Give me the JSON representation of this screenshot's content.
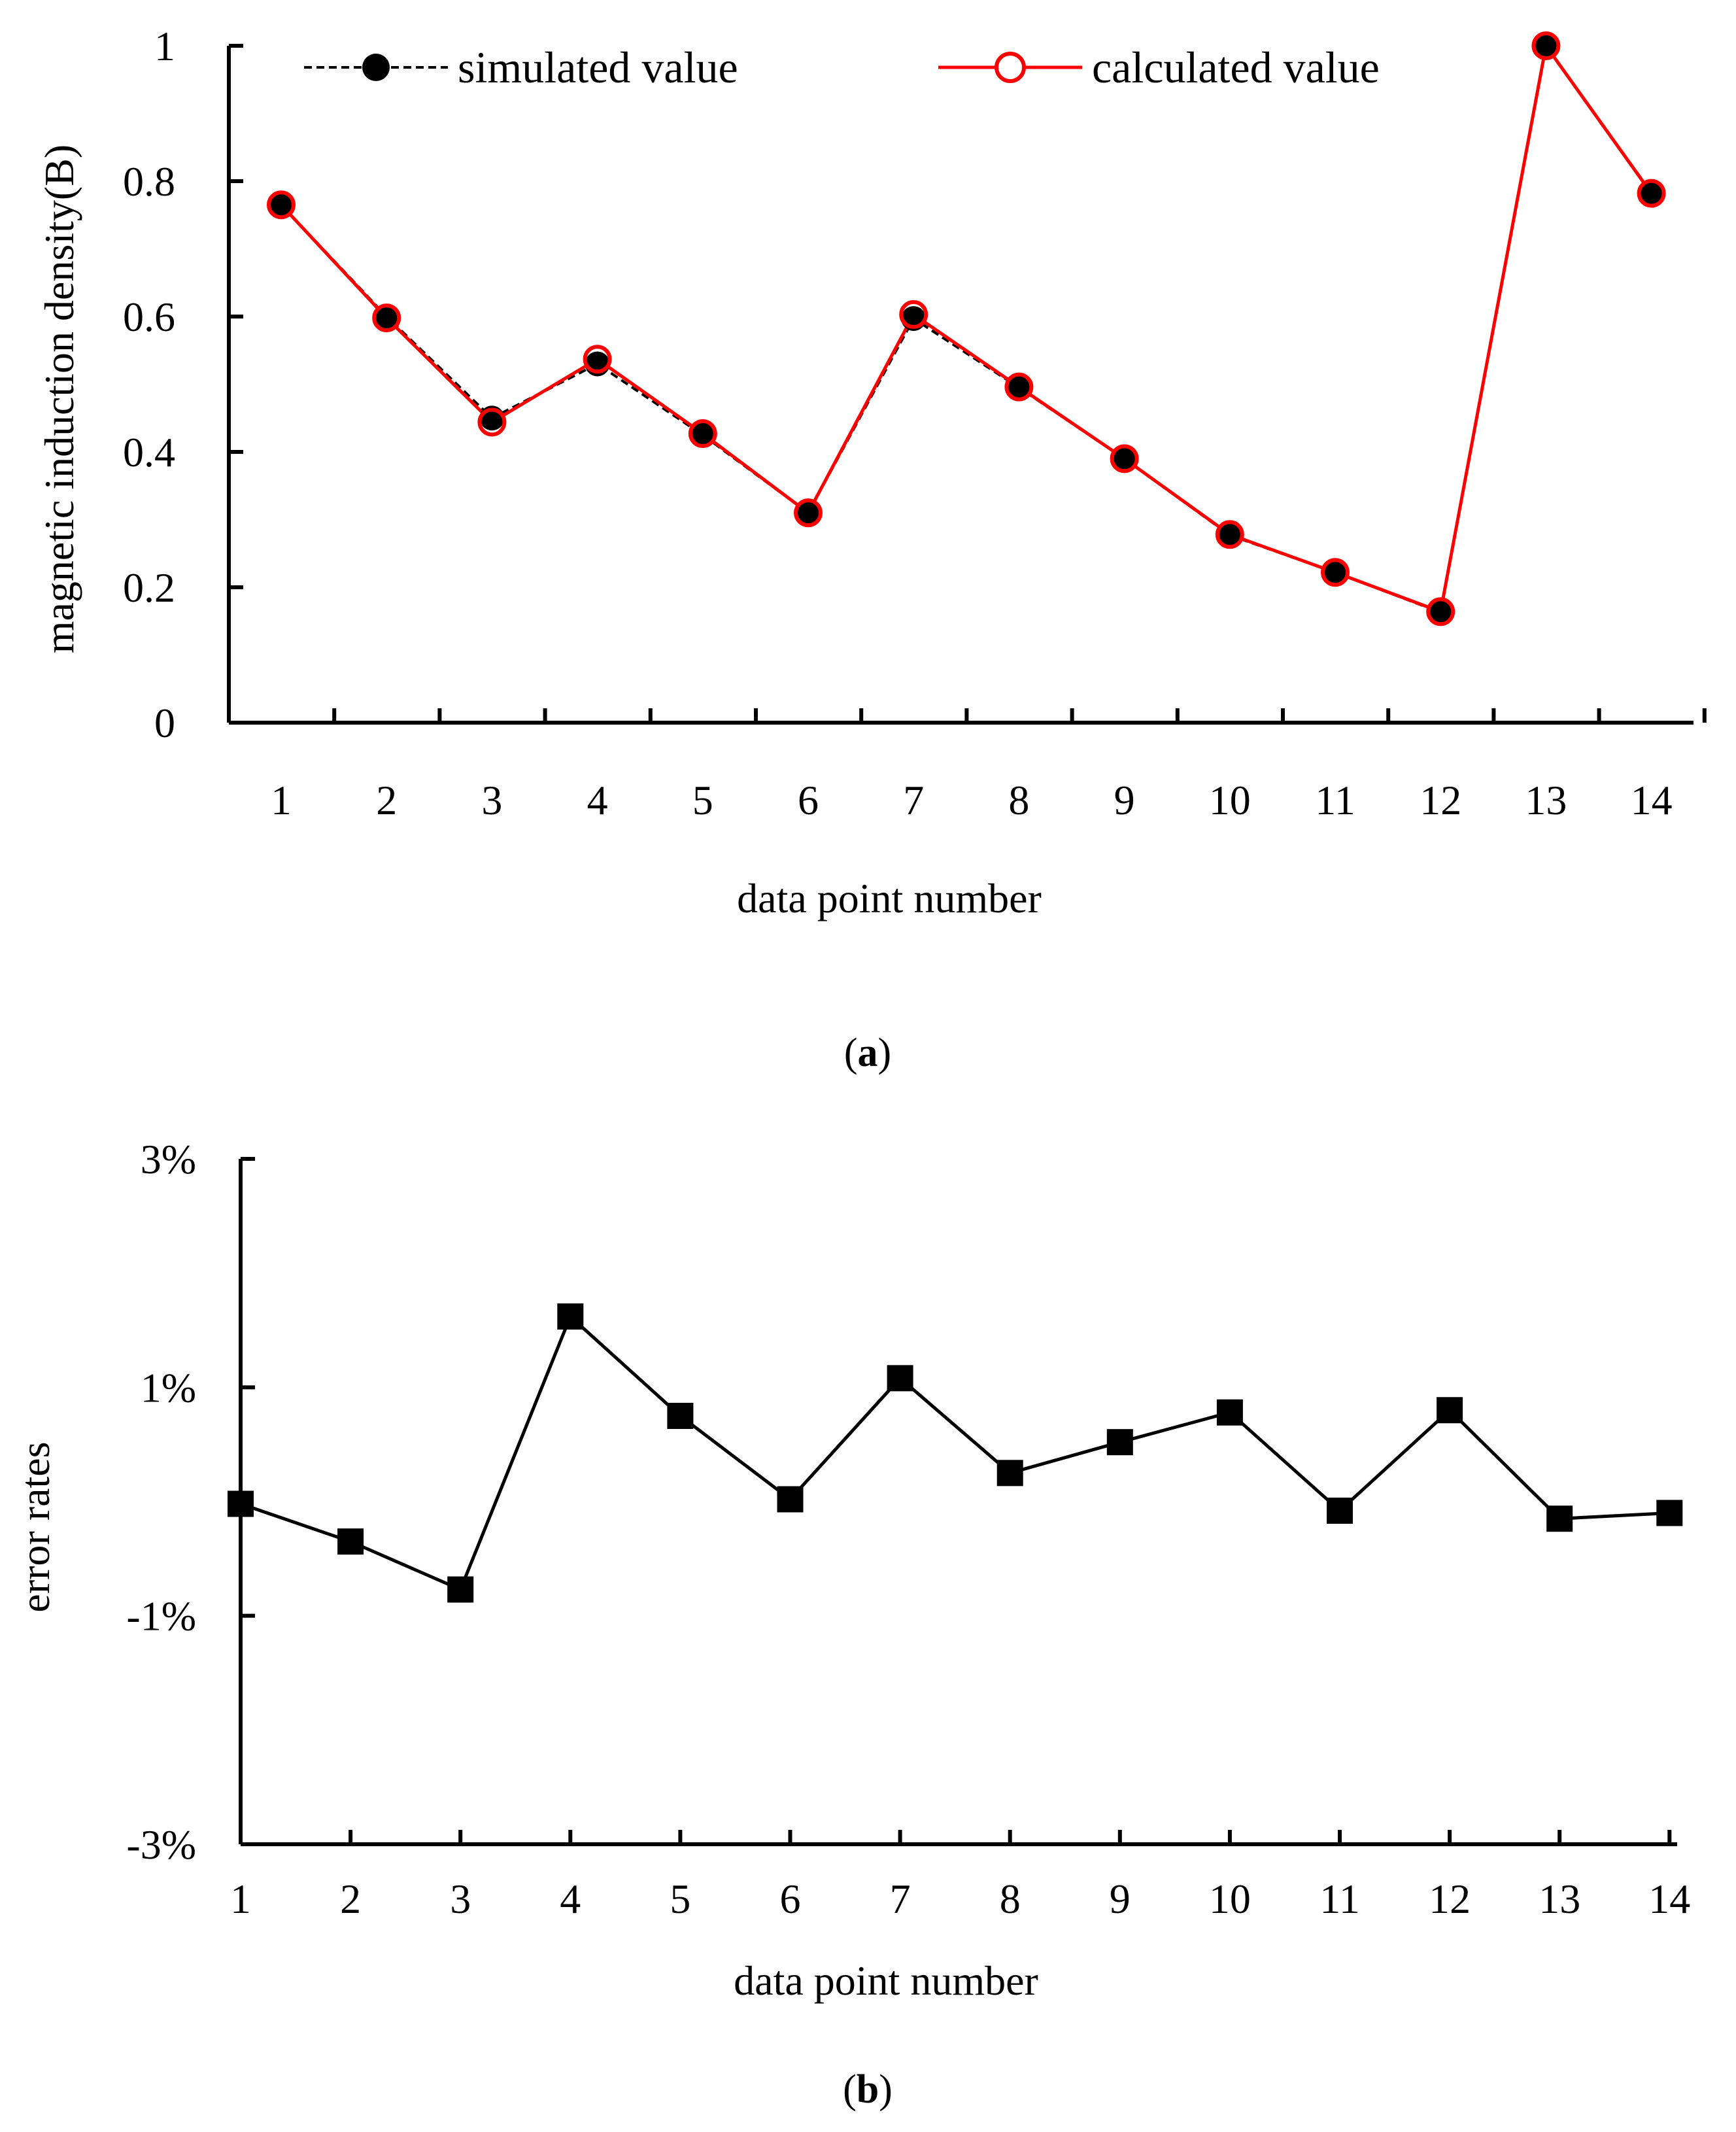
{
  "chart_data": [
    {
      "type": "line",
      "caption_letter": "a",
      "categories": [
        "1",
        "2",
        "3",
        "4",
        "5",
        "6",
        "7",
        "8",
        "9",
        "10",
        "11",
        "12",
        "13",
        "14"
      ],
      "series": [
        {
          "name": "simulated value",
          "values": [
            0.765,
            0.6,
            0.45,
            0.53,
            0.425,
            0.31,
            0.597,
            0.495,
            0.39,
            0.277,
            0.222,
            0.163,
            1.0,
            0.783
          ],
          "color": "#000000",
          "line_style": "dashed",
          "marker": "filled-circle"
        },
        {
          "name": "calculated value",
          "values": [
            0.765,
            0.598,
            0.444,
            0.537,
            0.427,
            0.31,
            0.603,
            0.496,
            0.39,
            0.278,
            0.222,
            0.164,
            1.0,
            0.782
          ],
          "color": "#ff0000",
          "line_style": "solid",
          "marker": "open-circle"
        }
      ],
      "ylim": [
        0,
        1
      ],
      "yticks": [
        "0",
        "0.2",
        "0.4",
        "0.6",
        "0.8",
        "1"
      ],
      "xlabel": "data point number",
      "ylabel": "magnetic induction density(B)",
      "legend": "top"
    },
    {
      "type": "line",
      "caption_letter": "b",
      "categories": [
        "1",
        "2",
        "3",
        "4",
        "5",
        "6",
        "7",
        "8",
        "9",
        "10",
        "11",
        "12",
        "13",
        "14"
      ],
      "series": [
        {
          "name": "error rates",
          "values": [
            -0.02,
            -0.35,
            -0.77,
            1.62,
            0.75,
            0.02,
            1.08,
            0.25,
            0.52,
            0.78,
            -0.08,
            0.8,
            -0.15,
            -0.1
          ],
          "color": "#000000",
          "line_style": "solid",
          "marker": "filled-square"
        }
      ],
      "ylim": [
        -3,
        3
      ],
      "yticks": [
        "-3%",
        "-1%",
        "1%",
        "3%"
      ],
      "ytick_values": [
        -3,
        -1,
        1,
        3
      ],
      "xlabel": "data point number",
      "ylabel": "error rates"
    }
  ]
}
